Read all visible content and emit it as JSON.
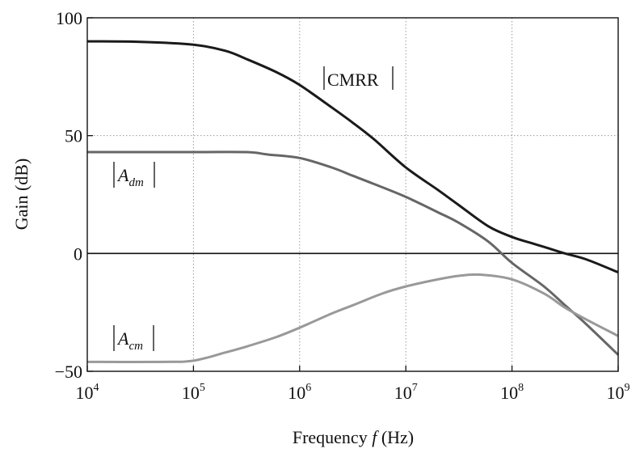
{
  "chart_data": {
    "type": "line",
    "xlabel_prefix": "Frequency ",
    "xlabel_var": "f",
    "xlabel_suffix": " (Hz)",
    "ylabel": "Gain (dB)",
    "xscale": "log",
    "xlim": [
      10000,
      1000000000
    ],
    "ylim": [
      -50,
      100
    ],
    "grid": true,
    "x_ticks": [
      {
        "value": 10000,
        "base": "10",
        "exp": "4"
      },
      {
        "value": 100000,
        "base": "10",
        "exp": "5"
      },
      {
        "value": 1000000,
        "base": "10",
        "exp": "6"
      },
      {
        "value": 10000000,
        "base": "10",
        "exp": "7"
      },
      {
        "value": 100000000,
        "base": "10",
        "exp": "8"
      },
      {
        "value": 1000000000,
        "base": "10",
        "exp": "9"
      }
    ],
    "y_ticks": [
      {
        "value": 100,
        "label": "100"
      },
      {
        "value": 50,
        "label": "50"
      },
      {
        "value": 0,
        "label": "0"
      },
      {
        "value": -50,
        "label": "−50"
      }
    ],
    "series": [
      {
        "key": "cmrr",
        "color": "#1a1a1a",
        "label_text": "CMRR",
        "x": [
          10000,
          31600,
          100000,
          200000,
          316000,
          600000,
          1000000,
          2000000,
          3160000,
          5000000,
          10000000,
          20000000,
          31600000,
          60000000,
          100000000,
          150000000,
          200000000,
          316000000,
          500000000,
          1000000000
        ],
        "y": [
          90,
          89.8,
          88.6,
          86,
          82.5,
          77,
          71.5,
          62,
          55.5,
          48.5,
          36.5,
          27,
          20.5,
          11.5,
          7,
          4.5,
          2.8,
          0,
          -2.5,
          -8
        ]
      },
      {
        "key": "adm",
        "color": "#666666",
        "label_base": "A",
        "label_sub": "dm",
        "x": [
          10000,
          100000,
          316000,
          500000,
          1000000,
          2000000,
          3160000,
          5000000,
          10000000,
          20000000,
          31600000,
          60000000,
          100000000,
          200000000,
          316000000,
          500000000,
          1000000000
        ],
        "y": [
          43,
          43,
          43,
          42,
          40.5,
          36.5,
          33,
          29.5,
          24,
          17.5,
          13,
          5,
          -4,
          -14,
          -22,
          -30,
          -43
        ]
      },
      {
        "key": "acm",
        "color": "#999999",
        "label_base": "A",
        "label_sub": "cm",
        "x": [
          10000,
          50000,
          100000,
          200000,
          316000,
          600000,
          1000000,
          2000000,
          3160000,
          6000000,
          10000000,
          20000000,
          31600000,
          50000000,
          100000000,
          200000000,
          316000000,
          500000000,
          1000000000
        ],
        "y": [
          -46,
          -46,
          -45.5,
          -42,
          -39.5,
          -35.5,
          -31.5,
          -25.5,
          -22,
          -17,
          -14,
          -11,
          -9.5,
          -9,
          -11,
          -17,
          -23,
          -28,
          -35
        ]
      }
    ]
  }
}
